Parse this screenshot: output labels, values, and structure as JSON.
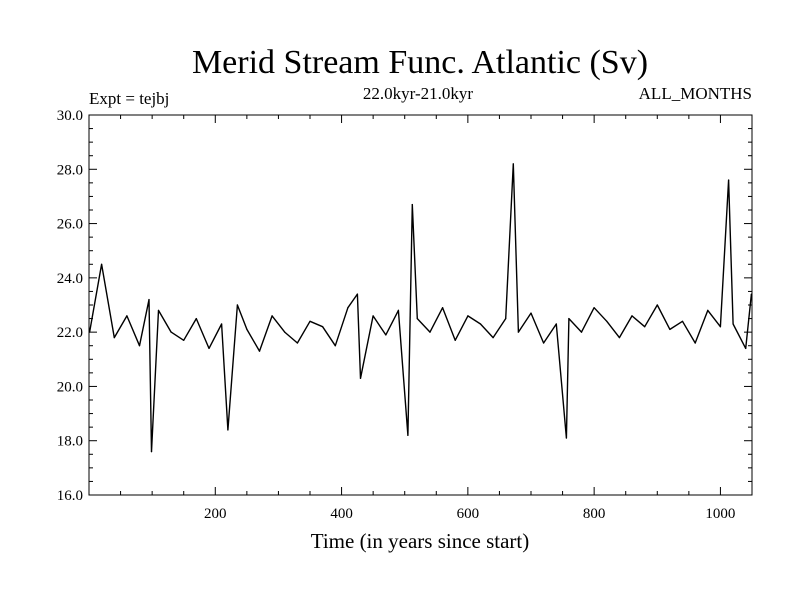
{
  "chart_data": {
    "type": "line",
    "title": "Merid Stream Func. Atlantic (Sv)",
    "subtitle": "22.0kyr-21.0kyr",
    "left_note": "Expt = tejbj",
    "right_note": "ALL_MONTHS",
    "xlabel": "Time (in years since start)",
    "ylabel": "",
    "xlim": [
      0,
      1050
    ],
    "ylim": [
      16.0,
      30.0
    ],
    "x_ticks": [
      200,
      400,
      600,
      800,
      1000
    ],
    "y_ticks": [
      16.0,
      18.0,
      20.0,
      22.0,
      24.0,
      26.0,
      28.0,
      30.0
    ],
    "x_tick_labels": [
      "200",
      "400",
      "600",
      "800",
      "1000"
    ],
    "y_tick_labels": [
      "16.0",
      "18.0",
      "20.0",
      "22.0",
      "24.0",
      "26.0",
      "28.0",
      "30.0"
    ],
    "grid": false,
    "line_color": "#000000",
    "series": [
      {
        "x": [
          1,
          20,
          40,
          60,
          80,
          95,
          99,
          110,
          130,
          150,
          170,
          190,
          210,
          220,
          235,
          250,
          270,
          290,
          310,
          330,
          350,
          370,
          390,
          410,
          425,
          430,
          450,
          470,
          490,
          505,
          512,
          520,
          540,
          560,
          580,
          600,
          620,
          640,
          660,
          672,
          680,
          700,
          720,
          740,
          756,
          760,
          780,
          800,
          820,
          840,
          860,
          880,
          900,
          920,
          940,
          960,
          980,
          1000,
          1013,
          1020,
          1040,
          1049
        ],
        "values": [
          22.0,
          24.5,
          21.8,
          22.6,
          21.5,
          23.2,
          17.6,
          22.8,
          22.0,
          21.7,
          22.5,
          21.4,
          22.3,
          18.4,
          23.0,
          22.1,
          21.3,
          22.6,
          22.0,
          21.6,
          22.4,
          22.2,
          21.5,
          22.9,
          23.4,
          20.3,
          22.6,
          21.9,
          22.8,
          18.2,
          26.7,
          22.5,
          22.0,
          22.9,
          21.7,
          22.6,
          22.3,
          21.8,
          22.5,
          28.2,
          22.0,
          22.7,
          21.6,
          22.3,
          18.1,
          22.5,
          22.0,
          22.9,
          22.4,
          21.8,
          22.6,
          22.2,
          23.0,
          22.1,
          22.4,
          21.6,
          22.8,
          22.2,
          27.6,
          22.3,
          21.4,
          23.4
        ]
      }
    ]
  }
}
